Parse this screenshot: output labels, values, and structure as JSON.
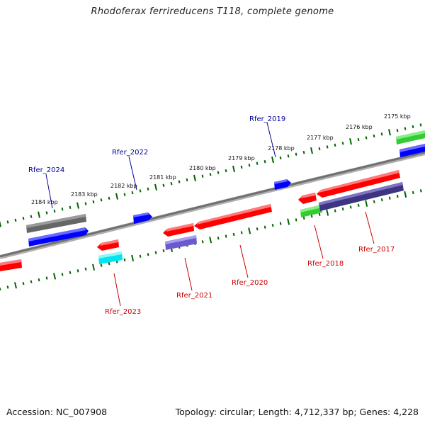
{
  "title": "Rhodoferax ferrireducens T118, complete genome",
  "footer": {
    "accession": "Accession: NC_007908",
    "summary": "Topology: circular; Length: 4,712,337 bp; Genes: 4,228"
  },
  "ticks": [
    "2184 kbp",
    "2183 kbp",
    "2182 kbp",
    "2181 kbp",
    "2180 kbp",
    "2179 kbp",
    "2178 kbp",
    "2177 kbp",
    "2176 kbp",
    "2175 kbp"
  ],
  "labels": {
    "top": [
      "Rfer_2024",
      "Rfer_2022",
      "Rfer_2019"
    ],
    "bottom": [
      "Rfer_2023",
      "Rfer_2021",
      "Rfer_2020",
      "Rfer_2018",
      "Rfer_2017"
    ]
  },
  "colors": {
    "cds": "#ff0000",
    "rna": "#0000ff",
    "gray": "#666666",
    "green": "#33cc33",
    "cyan": "#00e5ee",
    "slate": "#6a5acd",
    "navy": "#3d357f",
    "tick": "#006400",
    "backbone": "#808080",
    "label_top": "#000099",
    "label_bottom": "#cc0000"
  }
}
